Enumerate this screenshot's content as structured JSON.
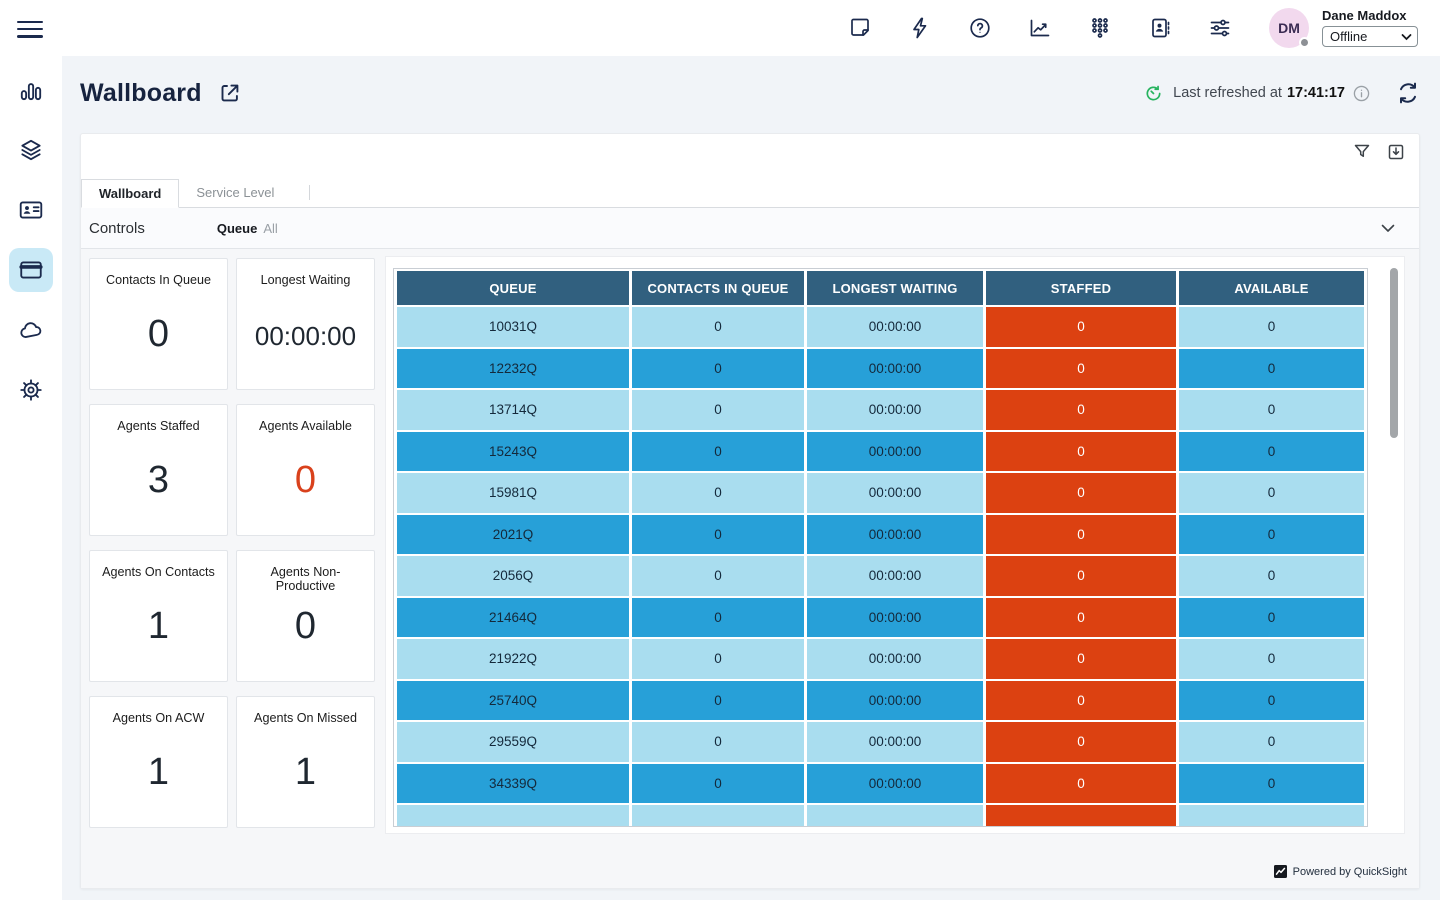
{
  "topbar": {
    "icons": [
      "notes-icon",
      "quick-actions-icon",
      "help-icon",
      "metrics-icon",
      "dialpad-icon",
      "agent-directory-icon",
      "preferences-icon"
    ],
    "user": {
      "initials": "DM",
      "name": "Dane Maddox",
      "status": "Offline"
    }
  },
  "sidebar": {
    "icons": [
      "menu-icon",
      "bar-chart-icon",
      "layers-icon",
      "contact-card-icon",
      "wallboard-icon",
      "cloud-icon",
      "gear-icon"
    ],
    "active": "wallboard-icon"
  },
  "header": {
    "title": "Wallboard",
    "last_refreshed_label": "Last refreshed at",
    "last_refreshed_time": "17:41:17"
  },
  "dashboard": {
    "tabs": [
      {
        "label": "Wallboard",
        "active": true
      },
      {
        "label": "Service Level",
        "active": false
      }
    ],
    "controls": {
      "label": "Controls",
      "filter_name": "Queue",
      "filter_value": "All"
    },
    "kpis": [
      {
        "label": "Contacts In Queue",
        "value": "0",
        "accent": "dark"
      },
      {
        "label": "Longest Waiting",
        "value": "00:00:00",
        "accent": "dark"
      },
      {
        "label": "Agents Staffed",
        "value": "3",
        "accent": "dark"
      },
      {
        "label": "Agents Available",
        "value": "0",
        "accent": "orange"
      },
      {
        "label": "Agents On Contacts",
        "value": "1",
        "accent": "dark"
      },
      {
        "label": "Agents Non-Productive",
        "value": "0",
        "accent": "dark"
      },
      {
        "label": "Agents On ACW",
        "value": "1",
        "accent": "dark"
      },
      {
        "label": "Agents On Missed",
        "value": "1",
        "accent": "dark"
      }
    ],
    "table": {
      "columns": [
        "QUEUE",
        "CONTACTS IN QUEUE",
        "LONGEST WAITING",
        "STAFFED",
        "AVAILABLE"
      ],
      "rows": [
        [
          "10031Q",
          "0",
          "00:00:00",
          "0",
          "0"
        ],
        [
          "12232Q",
          "0",
          "00:00:00",
          "0",
          "0"
        ],
        [
          "13714Q",
          "0",
          "00:00:00",
          "0",
          "0"
        ],
        [
          "15243Q",
          "0",
          "00:00:00",
          "0",
          "0"
        ],
        [
          "15981Q",
          "0",
          "00:00:00",
          "0",
          "0"
        ],
        [
          "2021Q",
          "0",
          "00:00:00",
          "0",
          "0"
        ],
        [
          "2056Q",
          "0",
          "00:00:00",
          "0",
          "0"
        ],
        [
          "21464Q",
          "0",
          "00:00:00",
          "0",
          "0"
        ],
        [
          "21922Q",
          "0",
          "00:00:00",
          "0",
          "0"
        ],
        [
          "25740Q",
          "0",
          "00:00:00",
          "0",
          "0"
        ],
        [
          "29559Q",
          "0",
          "00:00:00",
          "0",
          "0"
        ],
        [
          "34339Q",
          "0",
          "00:00:00",
          "0",
          "0"
        ],
        [
          "",
          "",
          "",
          "",
          ""
        ]
      ]
    },
    "powered_by": "Powered by QuickSight"
  },
  "colors": {
    "table_header_bg": "#31607F",
    "row_light": "#A9DDEF",
    "row_medium": "#27A0D8",
    "staffed_cell": "#DC4111",
    "kpi_alert_orange": "#D9411C",
    "active_nav_bg": "#C9E9F6",
    "avatar_bg": "#F2D9EE",
    "refresh_green": "#27B35F",
    "icon_navy": "#1B2A4D",
    "page_bg": "#F1F4F8"
  }
}
